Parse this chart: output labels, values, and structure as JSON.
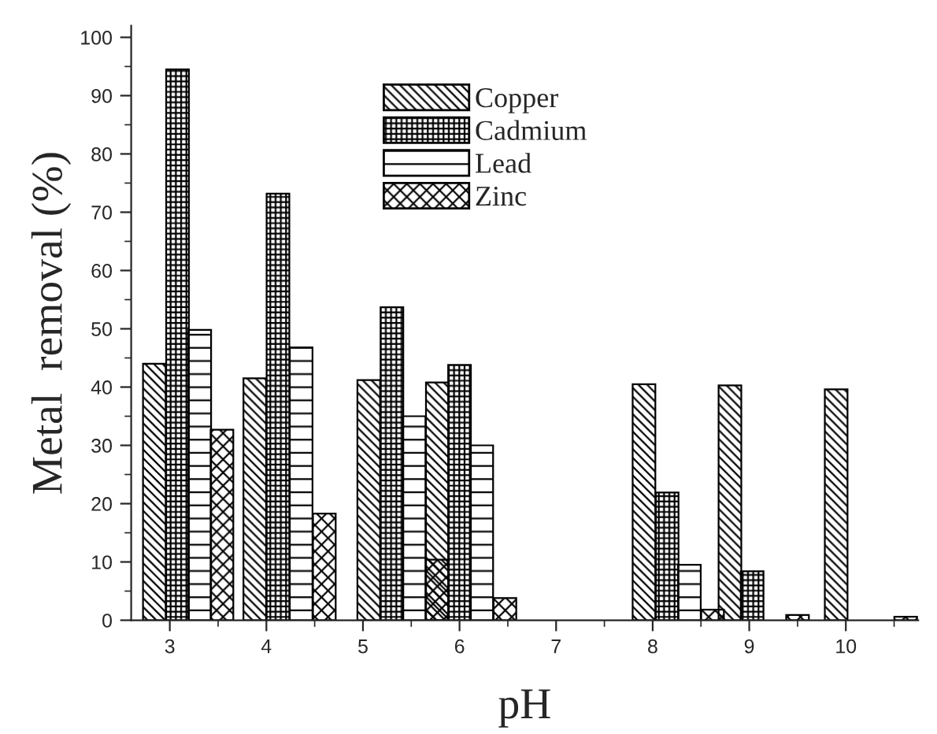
{
  "chart_data": {
    "type": "bar",
    "xlabel": "pH",
    "ylabel": "Metal  removal (%)",
    "xlim": [
      2.6,
      10.75
    ],
    "xticks": [
      3,
      4,
      5,
      6,
      7,
      8,
      9,
      10
    ],
    "ylim": [
      0,
      102
    ],
    "yticks": [
      0,
      10,
      20,
      30,
      40,
      50,
      60,
      70,
      80,
      90,
      100
    ],
    "legend": "top",
    "grid": false,
    "series": [
      {
        "name": "Copper",
        "color": "#000000",
        "x": [
          2.84,
          3.88,
          5.06,
          5.77,
          7.91,
          8.8,
          9.9
        ],
        "values": [
          44,
          41.5,
          41.2,
          40.8,
          40.5,
          40.3,
          39.6
        ]
      },
      {
        "name": "Cadmium",
        "color": "#000000",
        "x": [
          3.08,
          4.12,
          5.3,
          6.0,
          8.15,
          9.03
        ],
        "values": [
          94.5,
          73.2,
          53.7,
          43.8,
          21.9,
          8.4
        ]
      },
      {
        "name": "Lead",
        "color": "#000000",
        "x": [
          3.31,
          4.36,
          5.53,
          6.23,
          8.38
        ],
        "values": [
          49.8,
          46.8,
          35,
          30,
          9.5
        ]
      },
      {
        "name": "Zinc",
        "color": "#000000",
        "x": [
          3.54,
          4.6,
          5.77,
          6.47,
          8.62,
          9.5,
          10.62
        ],
        "values": [
          32.7,
          18.3,
          10.4,
          3.8,
          1.8,
          0.9,
          0.6
        ]
      }
    ]
  }
}
